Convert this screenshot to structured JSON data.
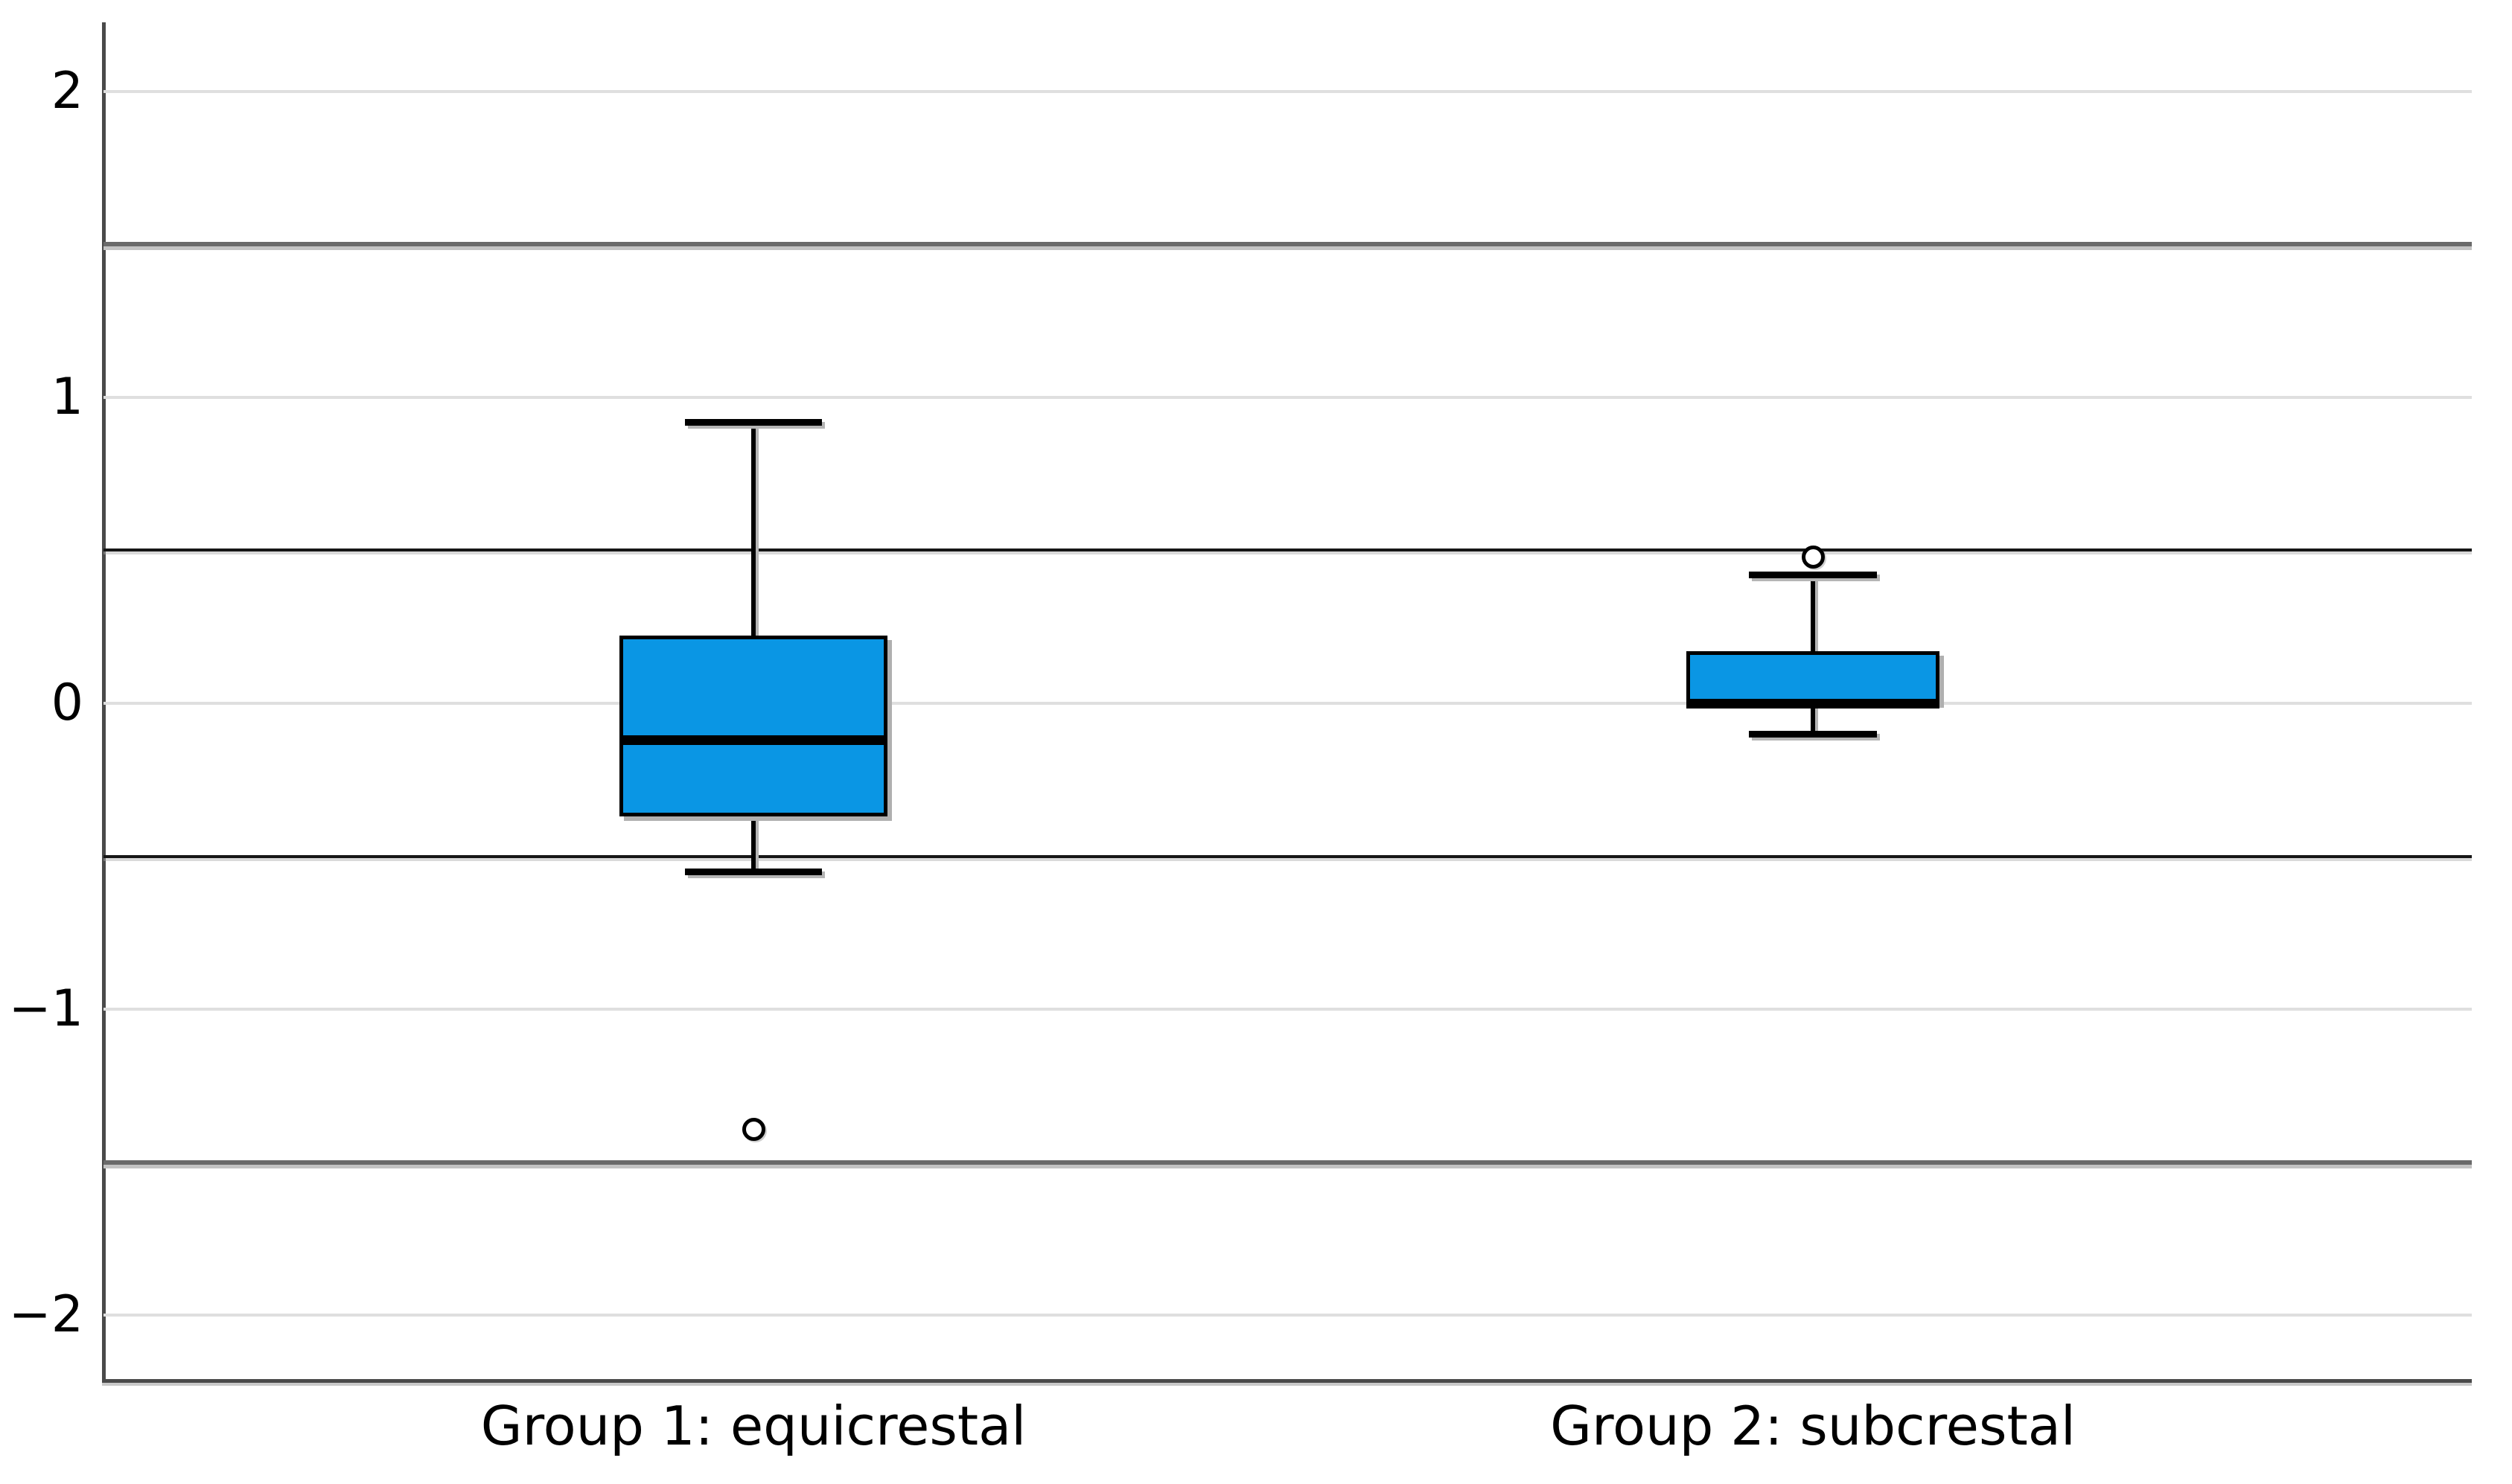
{
  "chart_data": {
    "type": "boxplot",
    "title": "",
    "xlabel": "",
    "ylabel": "",
    "categories": [
      "Group 1: equicrestal",
      "Group 2: subcrestal"
    ],
    "ylim": [
      -2.213,
      2.225
    ],
    "yticks": [
      2,
      1,
      0,
      -1,
      -2
    ],
    "ytick_labels": [
      "2",
      "1",
      "0",
      "−1",
      "−2"
    ],
    "grid": "horizontal light gridlines at integer ticks",
    "legend": "none",
    "reference_lines": [
      {
        "value": 1.5,
        "style": "thick-gray"
      },
      {
        "value": 0.5,
        "style": "thin-black"
      },
      {
        "value": -0.5,
        "style": "thin-black"
      },
      {
        "value": -1.5,
        "style": "thick-gray"
      }
    ],
    "series": [
      {
        "name": "Group 1: equicrestal",
        "median": -0.12,
        "q1": -0.37,
        "q3": 0.22,
        "whisker_low": -0.55,
        "whisker_high": 0.92,
        "outliers": [
          -1.39
        ]
      },
      {
        "name": "Group 2: subcrestal",
        "median": 0.0,
        "q1": 0.0,
        "q3": 0.17,
        "whisker_low": -0.1,
        "whisker_high": 0.42,
        "outliers": [
          0.48
        ]
      }
    ],
    "colors": {
      "box_fill": "#0A96E4",
      "box_border": "#000000",
      "median_line": "#000000",
      "gridline": "#DFDFDF",
      "reference_thin": "#161616",
      "reference_thick": "#6A6A6A",
      "axis": "#4A4A4A",
      "shadow": "#B0B0B0",
      "background": "#FFFFFF"
    }
  }
}
